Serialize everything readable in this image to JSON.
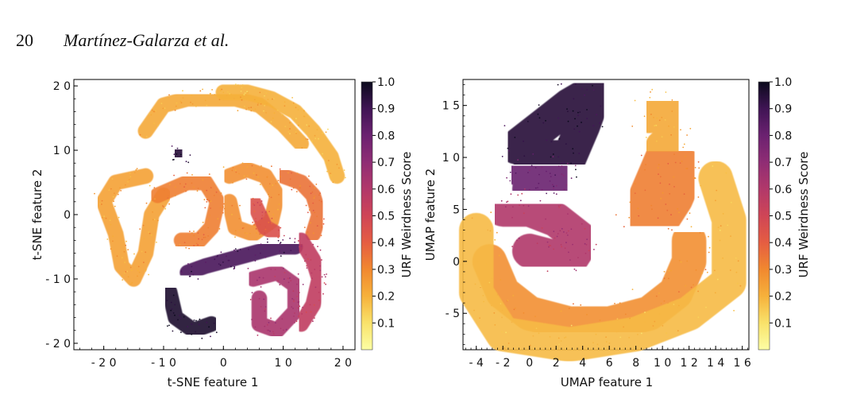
{
  "header": {
    "page_number": "20",
    "authors": "Martínez-Galarza et al."
  },
  "chart_data": [
    {
      "type": "scatter",
      "title": "",
      "xlabel": "t-SNE feature 1",
      "ylabel": "t-SNE feature 2",
      "xlim": [
        -25,
        22
      ],
      "ylim": [
        -21,
        21
      ],
      "xticks": [
        -20,
        -10,
        0,
        10,
        20
      ],
      "yticks": [
        -20,
        -10,
        0,
        10,
        20
      ],
      "xtick_labels": [
        "- 2 0",
        "- 1 0",
        "0",
        "1 0",
        "2 0"
      ],
      "ytick_labels": [
        "- 2 0",
        "- 1 0",
        "0",
        "1 0",
        "2 0"
      ],
      "colorbar": {
        "label": "URF Weirdness Score",
        "range": [
          0,
          1.0
        ],
        "ticks": [
          "0.1",
          "0.2",
          "0.3",
          "0.4",
          "0.5",
          "0.6",
          "0.7",
          "0.8",
          "0.9",
          "1.0"
        ]
      },
      "series": [
        {
          "name": "orange outer arc",
          "score": 0.22,
          "points": [
            [
              -13,
              13
            ],
            [
              -10,
              17
            ],
            [
              -6,
              18
            ],
            [
              -2,
              18
            ],
            [
              2,
              18
            ],
            [
              6,
              17
            ],
            [
              10,
              14
            ],
            [
              13,
              11
            ]
          ]
        },
        {
          "name": "orange top-right blob",
          "score": 0.2,
          "points": [
            [
              0,
              19
            ],
            [
              4,
              19
            ],
            [
              8,
              18
            ],
            [
              12,
              16
            ],
            [
              15,
              13
            ],
            [
              18,
              9
            ],
            [
              19,
              6
            ]
          ]
        },
        {
          "name": "left hook",
          "score": 0.24,
          "points": [
            [
              -13,
              6
            ],
            [
              -18,
              5
            ],
            [
              -20,
              2
            ],
            [
              -18,
              -3
            ],
            [
              -17,
              -8
            ],
            [
              -15,
              -10
            ],
            [
              -13,
              -6
            ],
            [
              -12,
              0
            ],
            [
              -10,
              3
            ]
          ]
        },
        {
          "name": "middle band",
          "score": 0.32,
          "points": [
            [
              -11,
              3
            ],
            [
              -6,
              5
            ],
            [
              -3,
              5
            ],
            [
              -1,
              2
            ],
            [
              -2,
              -2
            ],
            [
              -4,
              -4
            ],
            [
              -7,
              -4
            ]
          ]
        },
        {
          "name": "center loop",
          "score": 0.28,
          "points": [
            [
              1,
              6
            ],
            [
              4,
              7
            ],
            [
              7,
              6
            ],
            [
              9,
              3
            ],
            [
              8,
              -1
            ],
            [
              5,
              -3
            ],
            [
              2,
              -2
            ],
            [
              1,
              2
            ]
          ]
        },
        {
          "name": "right arc",
          "score": 0.35,
          "points": [
            [
              10,
              6
            ],
            [
              13,
              5
            ],
            [
              15,
              3
            ],
            [
              16,
              0
            ],
            [
              15,
              -3
            ]
          ]
        },
        {
          "name": "small central arc",
          "score": 0.45,
          "points": [
            [
              5,
              2
            ],
            [
              6,
              0
            ],
            [
              7,
              -2
            ],
            [
              9,
              -3
            ]
          ]
        },
        {
          "name": "dark band",
          "score": 0.88,
          "points": [
            [
              -6,
              -9
            ],
            [
              -3,
              -8
            ],
            [
              1,
              -7
            ],
            [
              5,
              -6
            ],
            [
              9,
              -5
            ],
            [
              12,
              -5
            ]
          ]
        },
        {
          "name": "dark lower arc",
          "score": 0.97,
          "points": [
            [
              -9,
              -12
            ],
            [
              -8,
              -16
            ],
            [
              -5,
              -18
            ],
            [
              -2,
              -17
            ]
          ]
        },
        {
          "name": "bottom swirl",
          "score": 0.62,
          "points": [
            [
              5,
              -10
            ],
            [
              9,
              -9
            ],
            [
              12,
              -11
            ],
            [
              12,
              -15
            ],
            [
              9,
              -18
            ],
            [
              6,
              -17
            ],
            [
              6,
              -13
            ]
          ]
        },
        {
          "name": "lower right purple",
          "score": 0.55,
          "points": [
            [
              13,
              -4
            ],
            [
              15,
              -7
            ],
            [
              16,
              -10
            ],
            [
              15,
              -14
            ],
            [
              13,
              -17
            ]
          ]
        },
        {
          "name": "small dark isle",
          "score": 0.95,
          "points": [
            [
              -8,
              10
            ],
            [
              -7,
              9
            ]
          ]
        }
      ]
    },
    {
      "type": "scatter",
      "title": "",
      "xlabel": "UMAP feature 1",
      "ylabel": "UMAP feature 2",
      "xlim": [
        -5,
        16.5
      ],
      "ylim": [
        -8.5,
        17.5
      ],
      "xticks": [
        -4,
        -2,
        0,
        2,
        4,
        6,
        8,
        10,
        12,
        14,
        16
      ],
      "yticks": [
        -5,
        0,
        5,
        10,
        15
      ],
      "xtick_labels": [
        "- 4",
        "- 2",
        "0",
        "2",
        "4",
        "6",
        "8",
        "1 0",
        "1 2",
        "1 4",
        "1 6"
      ],
      "ytick_labels": [
        "- 5",
        "0",
        "5",
        "1 0",
        "1 5"
      ],
      "colorbar": {
        "label": "URF Weirdness Score",
        "range": [
          0,
          1.0
        ],
        "ticks": [
          "0.1",
          "0.2",
          "0.3",
          "0.4",
          "0.5",
          "0.6",
          "0.7",
          "0.8",
          "0.9",
          "1.0"
        ]
      },
      "series": [
        {
          "name": "left arm upper",
          "score": 0.95,
          "points": [
            [
              -1,
              11
            ],
            [
              1,
              13
            ],
            [
              3,
              15
            ],
            [
              5,
              16.5
            ],
            [
              4,
              13
            ],
            [
              3,
              10
            ],
            [
              0,
              10
            ]
          ]
        },
        {
          "name": "left arm mid",
          "score": 0.8,
          "points": [
            [
              -1,
              9
            ],
            [
              1,
              9
            ],
            [
              2.5,
              8
            ],
            [
              1,
              7
            ],
            [
              0,
              7
            ]
          ]
        },
        {
          "name": "left arm lower",
          "score": 0.6,
          "points": [
            [
              -2,
              5
            ],
            [
              0,
              5
            ],
            [
              2,
              4
            ],
            [
              3,
              3
            ],
            [
              4,
              2
            ],
            [
              3,
              0
            ],
            [
              0,
              1
            ]
          ]
        },
        {
          "name": "bottom bowl",
          "score": 0.28,
          "points": [
            [
              -3,
              0
            ],
            [
              -2,
              -3
            ],
            [
              0,
              -5
            ],
            [
              3,
              -6
            ],
            [
              6,
              -6
            ],
            [
              9,
              -5
            ],
            [
              11,
              -3
            ],
            [
              12,
              0
            ],
            [
              12,
              2
            ]
          ]
        },
        {
          "name": "right arm",
          "score": 0.32,
          "points": [
            [
              10,
              4
            ],
            [
              11,
              6
            ],
            [
              12,
              9
            ],
            [
              10,
              10
            ],
            [
              9,
              7
            ],
            [
              8,
              4
            ]
          ]
        },
        {
          "name": "right tip",
          "score": 0.22,
          "points": [
            [
              9,
              14
            ],
            [
              10,
              15
            ],
            [
              11,
              12
            ],
            [
              10,
              11
            ]
          ]
        },
        {
          "name": "outer orange rim",
          "score": 0.18,
          "points": [
            [
              -4,
              3
            ],
            [
              -4,
              -3
            ],
            [
              -2,
              -7
            ],
            [
              3,
              -8
            ],
            [
              8,
              -7
            ],
            [
              12,
              -5
            ],
            [
              15,
              -2
            ],
            [
              15,
              4
            ],
            [
              14,
              8
            ]
          ]
        }
      ]
    }
  ]
}
